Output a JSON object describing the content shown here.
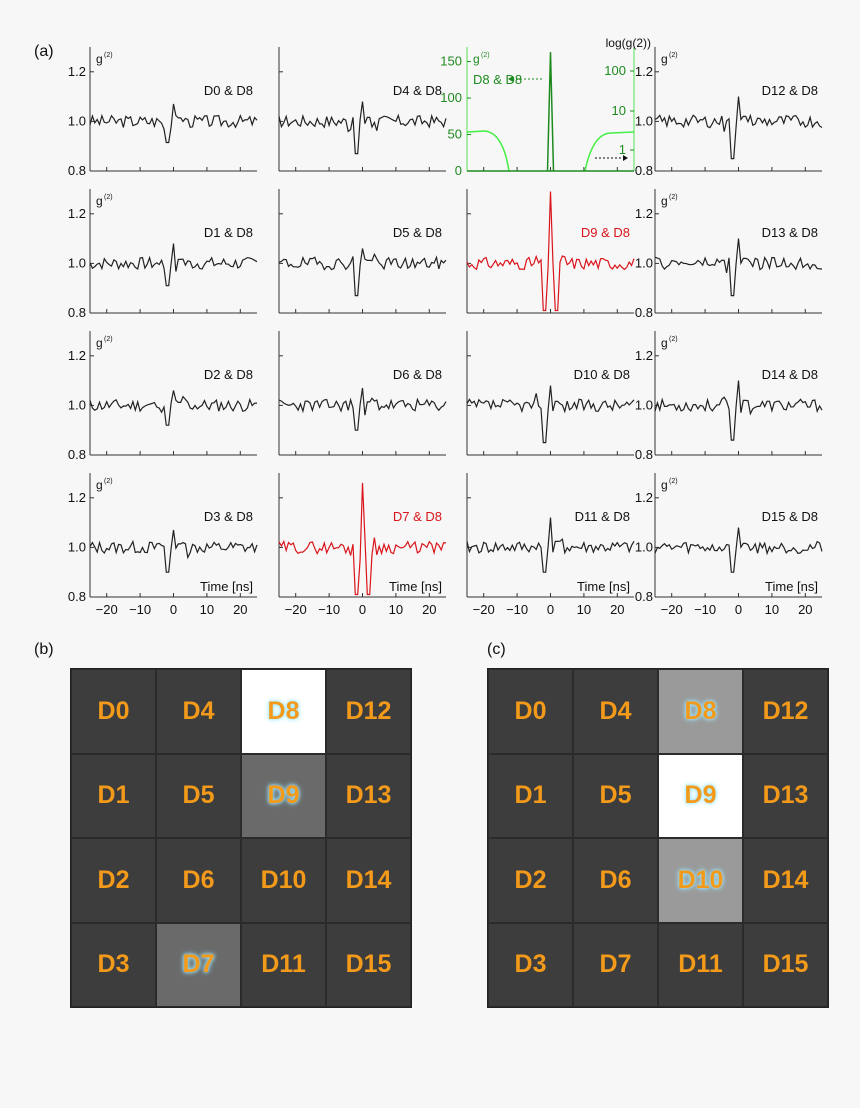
{
  "panel_labels": {
    "a": "(a)",
    "b": "(b)",
    "c": "(c)"
  },
  "axis_text": {
    "y_label_html": "g",
    "y_label_sup": "(2)",
    "log_label": "log(g",
    "log_sup": "(2)",
    "log_close": ")",
    "x_label": "Time [ns]"
  },
  "chart_data": {
    "type": "line",
    "xlabel": "Time [ns]",
    "ylabel": "g(2)",
    "x_ticks": [
      -20,
      -10,
      0,
      10,
      20
    ],
    "x_tick_labels": [
      "−20",
      "−10",
      "0",
      "10",
      "20"
    ],
    "xlim": [
      -25,
      25
    ],
    "ylim": [
      0.8,
      1.3
    ],
    "y_ticks": [
      0.8,
      1.0,
      1.2
    ],
    "y_tick_labels": [
      "0.8",
      "1.0",
      "1.2"
    ],
    "panels": [
      {
        "label": "D0 & D8",
        "color": "#222222",
        "seed": 3,
        "dip": 0.085,
        "peak": 0.07
      },
      {
        "label": "D1 & D8",
        "color": "#222222",
        "seed": 7,
        "dip": 0.09,
        "peak": 0.08
      },
      {
        "label": "D2 & D8",
        "color": "#222222",
        "seed": 11,
        "dip": 0.08,
        "peak": 0.06
      },
      {
        "label": "D3 & D8",
        "color": "#222222",
        "seed": 13,
        "dip": 0.1,
        "peak": 0.07
      },
      {
        "label": "D4 & D8",
        "color": "#222222",
        "seed": 17,
        "dip": 0.13,
        "peak": 0.08
      },
      {
        "label": "D5 & D8",
        "color": "#222222",
        "seed": 19,
        "dip": 0.13,
        "peak": 0.06
      },
      {
        "label": "D6 & D8",
        "color": "#222222",
        "seed": 23,
        "dip": 0.1,
        "peak": 0.07
      },
      {
        "label": "D7 & D8",
        "color": "#d9141b",
        "seed": 29,
        "dip": 0.2,
        "peak": 0.26,
        "highlight": true
      },
      {
        "label": "D8 & D8",
        "color": "#1f8a1f",
        "special": "auto",
        "y_ticks": [
          0,
          50,
          100,
          150
        ],
        "ylim": [
          0,
          170
        ],
        "right_ticks": [
          "100",
          "10",
          "1"
        ],
        "arrow_left_label": "g(2)",
        "arrow_right_label": "1"
      },
      {
        "label": "D9 & D8",
        "color": "#d9141b",
        "seed": 31,
        "dip": 0.2,
        "peak": 0.3,
        "highlight": true
      },
      {
        "label": "D10 & D8",
        "color": "#222222",
        "seed": 37,
        "dip": 0.15,
        "peak": 0.08
      },
      {
        "label": "D11 & D8",
        "color": "#222222",
        "seed": 41,
        "dip": 0.1,
        "peak": 0.12
      },
      {
        "label": "D12 & D8",
        "color": "#222222",
        "seed": 43,
        "dip": 0.15,
        "peak": 0.1
      },
      {
        "label": "D13 & D8",
        "color": "#222222",
        "seed": 47,
        "dip": 0.13,
        "peak": 0.1
      },
      {
        "label": "D14 & D8",
        "color": "#222222",
        "seed": 53,
        "dip": 0.14,
        "peak": 0.1
      },
      {
        "label": "D15 & D8",
        "color": "#222222",
        "seed": 59,
        "dip": 0.1,
        "peak": 0.08
      }
    ]
  },
  "detector_grid_b": {
    "labels": [
      "D0",
      "D4",
      "D8",
      "D12",
      "D1",
      "D5",
      "D9",
      "D13",
      "D2",
      "D6",
      "D10",
      "D14",
      "D3",
      "D7",
      "D11",
      "D15"
    ],
    "fill": [
      "#3d3d3d",
      "#3d3d3d",
      "#ffffff",
      "#3d3d3d",
      "#3d3d3d",
      "#3d3d3d",
      "#6a6a6a",
      "#3d3d3d",
      "#3d3d3d",
      "#3d3d3d",
      "#3d3d3d",
      "#3d3d3d",
      "#3d3d3d",
      "#6a6a6a",
      "#3d3d3d",
      "#3d3d3d"
    ]
  },
  "detector_grid_c": {
    "labels": [
      "D0",
      "D4",
      "D8",
      "D12",
      "D1",
      "D5",
      "D9",
      "D13",
      "D2",
      "D6",
      "D10",
      "D14",
      "D3",
      "D7",
      "D11",
      "D15"
    ],
    "fill": [
      "#3d3d3d",
      "#3d3d3d",
      "#9a9a9a",
      "#3d3d3d",
      "#3d3d3d",
      "#3d3d3d",
      "#ffffff",
      "#3d3d3d",
      "#3d3d3d",
      "#3d3d3d",
      "#9a9a9a",
      "#3d3d3d",
      "#3d3d3d",
      "#3d3d3d",
      "#3d3d3d",
      "#3d3d3d"
    ]
  }
}
